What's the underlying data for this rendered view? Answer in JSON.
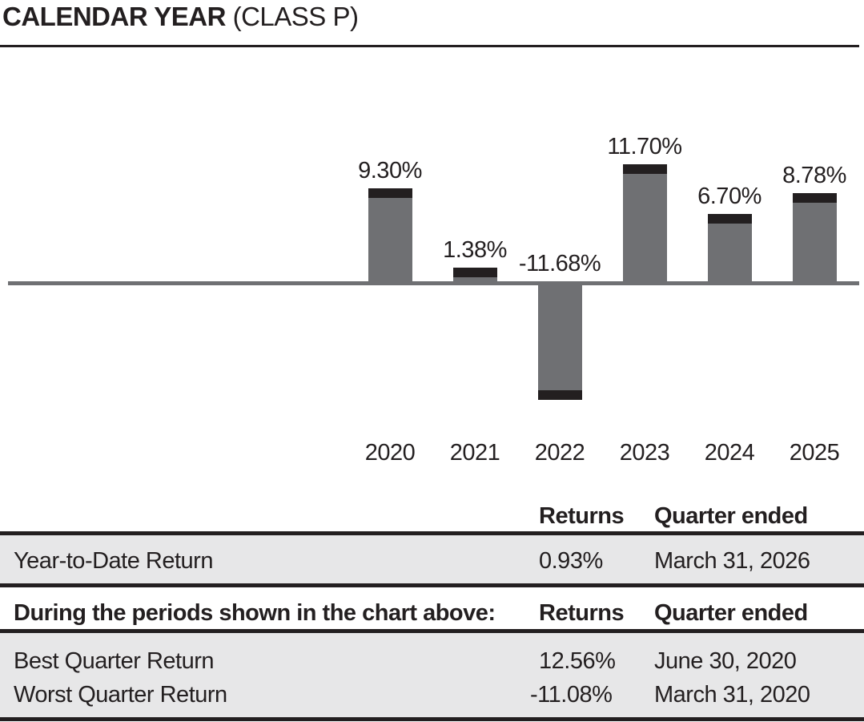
{
  "title": {
    "main": "CALENDAR YEAR",
    "suffix": " (CLASS P)"
  },
  "colors": {
    "bar_gray": "#6f7073",
    "cap_black": "#231f20",
    "axis_gray": "#6f7073",
    "table_band_gray": "#e7e7e8",
    "text_black": "#231f20"
  },
  "chart_data": {
    "type": "bar",
    "title": "CALENDAR YEAR (CLASS P)",
    "categories": [
      "2020",
      "2021",
      "2022",
      "2023",
      "2024",
      "2025"
    ],
    "values": [
      9.3,
      1.38,
      -11.68,
      11.7,
      6.7,
      8.78
    ],
    "bar_labels": [
      "9.30%",
      "1.38%",
      "-11.68%",
      "11.70%",
      "6.70%",
      "8.78%"
    ],
    "xlabel": "",
    "ylabel": "",
    "ylim": [
      -13,
      13
    ],
    "grid": false,
    "legend": "none",
    "bar_color": "#6f7073",
    "bar_cap_color": "#231f20",
    "zero_axis": true
  },
  "table": {
    "sections": [
      {
        "header": {
          "label": "",
          "returns": "Returns",
          "quarter": "Quarter ended"
        },
        "rows": [
          {
            "label": "Year-to-Date Return",
            "returns": "0.93%",
            "quarter": "March 31, 2026"
          }
        ]
      },
      {
        "header": {
          "label": "During the periods shown in the chart above:",
          "returns": "Returns",
          "quarter": "Quarter ended"
        },
        "rows": [
          {
            "label": "Best Quarter Return",
            "returns": "12.56%",
            "quarter": "June 30, 2020"
          },
          {
            "label": "Worst Quarter Return",
            "returns": "-11.08%",
            "quarter": "March 31, 2020"
          }
        ]
      }
    ]
  }
}
